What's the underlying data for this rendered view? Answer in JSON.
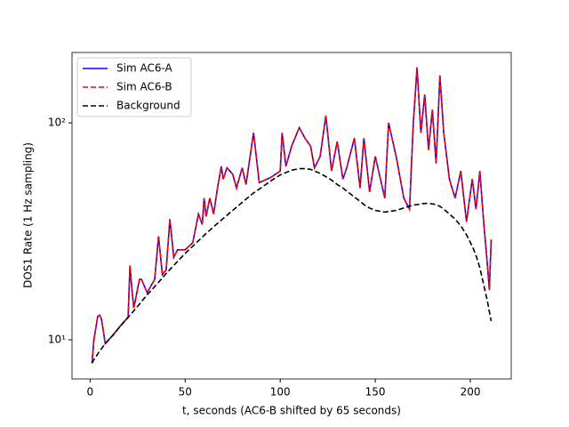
{
  "chart_data": {
    "type": "line",
    "xlabel": "t, seconds (AC6-B shifted by 65 seconds)",
    "ylabel": "DOS1 Rate (1 Hz sampling)",
    "xlim": [
      -9.5,
      221.5
    ],
    "xticks": [
      0,
      50,
      100,
      150,
      200
    ],
    "ylim": [
      6.6,
      211
    ],
    "yscale": "log",
    "yticks": [
      {
        "value": 10,
        "label": "10¹"
      },
      {
        "value": 100,
        "label": "10²"
      }
    ],
    "legend": "upper left",
    "x": [
      1,
      2,
      4,
      5,
      6,
      8,
      12,
      16,
      20,
      21,
      22,
      23,
      26,
      27,
      30,
      34,
      36,
      38,
      40,
      42,
      44,
      46,
      50,
      54,
      57,
      59,
      60,
      61,
      63,
      65,
      67,
      69,
      70,
      72,
      75,
      77,
      80,
      82,
      86,
      89,
      95,
      100,
      101,
      103,
      106,
      110,
      113,
      116,
      118,
      121,
      124,
      127,
      130,
      133,
      135,
      139,
      142,
      144,
      147,
      150,
      155,
      157,
      161,
      165,
      168,
      170,
      172,
      174,
      176,
      178,
      180,
      182,
      184,
      186,
      189,
      192,
      195,
      198,
      201,
      203,
      205,
      207,
      209,
      210,
      211
    ],
    "series": [
      {
        "name": "Sim AC6-A",
        "color": "#0000ff",
        "linestyle": "solid",
        "values": [
          7.8,
          10,
          12.8,
          13,
          12.5,
          9.6,
          10.5,
          11.6,
          12.7,
          22,
          17,
          14,
          19,
          19,
          16.5,
          19,
          30,
          20,
          21,
          36,
          24,
          26,
          26,
          28,
          38,
          34,
          45,
          37,
          45,
          38,
          50,
          63,
          55,
          62,
          58,
          50,
          62,
          52,
          90,
          53,
          56,
          60,
          90,
          63,
          78,
          95,
          85,
          78,
          62,
          70,
          108,
          60,
          82,
          55,
          62,
          85,
          50,
          85,
          48,
          70,
          45,
          100,
          70,
          45,
          40,
          100,
          180,
          90,
          135,
          75,
          115,
          65,
          165,
          90,
          55,
          45,
          60,
          35,
          55,
          40,
          60,
          35,
          22,
          17,
          29
        ]
      },
      {
        "name": "Sim AC6-B",
        "color": "#ff0000",
        "linestyle": "dashed",
        "values": [
          7.8,
          10,
          12.8,
          13,
          12.5,
          9.6,
          10.5,
          11.6,
          12.7,
          22,
          17,
          14,
          19,
          19,
          16.5,
          19,
          30,
          20,
          21,
          36,
          24,
          26,
          26,
          28,
          38,
          34,
          45,
          37,
          45,
          38,
          50,
          63,
          55,
          62,
          58,
          50,
          62,
          52,
          90,
          53,
          56,
          60,
          90,
          63,
          78,
          95,
          85,
          78,
          62,
          70,
          108,
          60,
          82,
          55,
          62,
          85,
          50,
          85,
          48,
          70,
          45,
          100,
          70,
          45,
          40,
          100,
          180,
          90,
          135,
          75,
          115,
          65,
          165,
          90,
          55,
          45,
          60,
          35,
          55,
          40,
          60,
          35,
          22,
          17,
          29
        ]
      },
      {
        "name": "Background",
        "color": "#000000",
        "linestyle": "dashed",
        "values": [
          7.8,
          8.1,
          8.6,
          8.9,
          9.1,
          9.6,
          10.5,
          11.6,
          12.7,
          13,
          13.3,
          13.6,
          14.6,
          15,
          16.1,
          17.6,
          18.4,
          19.3,
          20.2,
          21.1,
          22,
          23,
          25,
          27,
          28.6,
          29.7,
          30.3,
          30.9,
          32,
          33.2,
          34.4,
          35.6,
          36.2,
          37.5,
          39.5,
          40.8,
          43,
          44.5,
          47.5,
          49.5,
          54,
          57.5,
          58,
          59,
          60.5,
          61.5,
          61.5,
          61,
          60,
          58.5,
          56.5,
          54.5,
          52,
          50,
          48.5,
          45.5,
          43.5,
          42,
          40.5,
          39.5,
          38.8,
          39,
          39.5,
          40.5,
          41.3,
          41.8,
          42,
          42.3,
          42.5,
          42.5,
          42.3,
          42,
          41.2,
          40,
          38,
          36,
          33.5,
          30.5,
          27,
          24.5,
          21.5,
          18,
          15,
          13.5,
          12.2
        ]
      }
    ]
  }
}
